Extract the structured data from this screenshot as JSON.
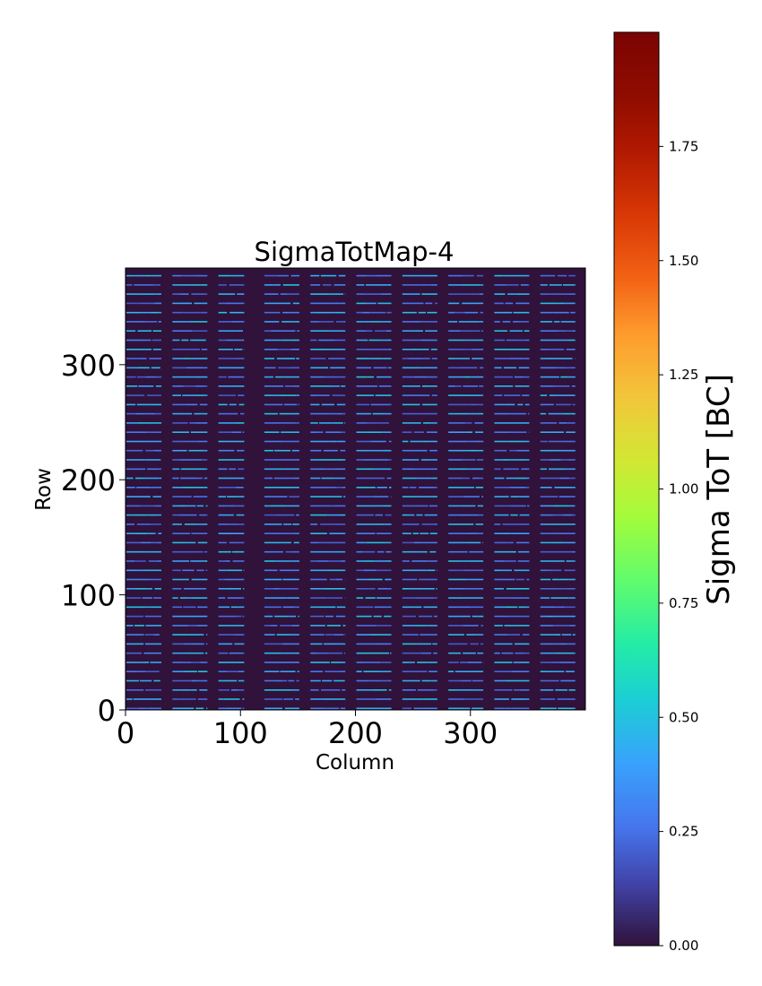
{
  "chart_data": {
    "type": "heatmap",
    "title": "SigmaTotMap-4",
    "xlabel": "Column",
    "ylabel": "Row",
    "xlim": [
      0,
      400
    ],
    "ylim": [
      0,
      384
    ],
    "x_ticks": [
      0,
      100,
      200,
      300
    ],
    "x_tick_labels": [
      "0",
      "100",
      "200",
      "300"
    ],
    "y_ticks": [
      0,
      100,
      200,
      300
    ],
    "y_tick_labels": [
      "0",
      "100",
      "200",
      "300"
    ],
    "colorbar": {
      "label": "Sigma ToT [BC]",
      "range": [
        0,
        2.0
      ],
      "ticks": [
        0.0,
        0.25,
        0.5,
        0.75,
        1.0,
        1.25,
        1.5,
        1.75
      ],
      "tick_labels": [
        "0.00",
        "0.25",
        "0.50",
        "0.75",
        "1.00",
        "1.25",
        "1.50",
        "1.75"
      ],
      "colormap": "turbo"
    },
    "background_value": 0.0,
    "column_bands": [
      {
        "start": 0,
        "end": 32
      },
      {
        "start": 40,
        "end": 72
      },
      {
        "start": 80,
        "end": 104
      },
      {
        "start": 120,
        "end": 152
      },
      {
        "start": 160,
        "end": 192
      },
      {
        "start": 200,
        "end": 232
      },
      {
        "start": 240,
        "end": 272
      },
      {
        "start": 280,
        "end": 312
      },
      {
        "start": 320,
        "end": 352
      },
      {
        "start": 360,
        "end": 392
      }
    ],
    "stripe_row_period": 8,
    "stripe_values": [
      0.25,
      0.45
    ]
  }
}
